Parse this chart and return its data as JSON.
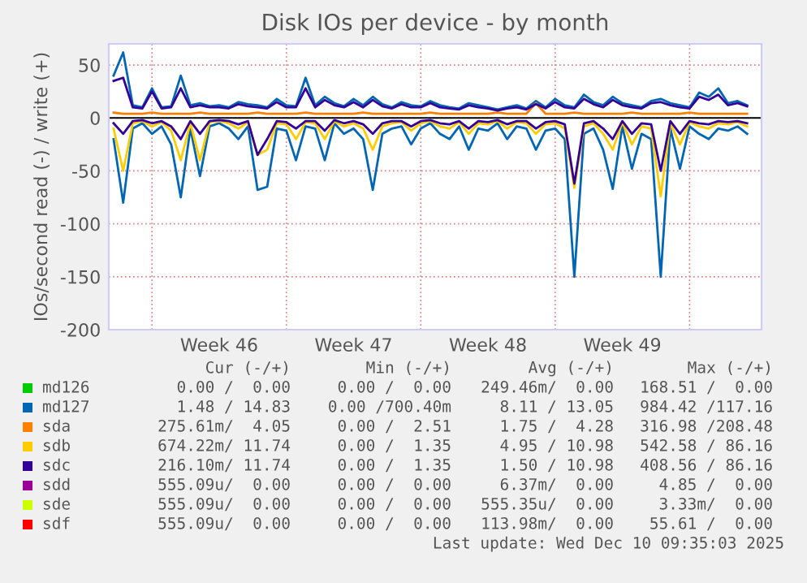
{
  "chart_data": {
    "type": "line",
    "title": "Disk IOs per device - by month",
    "ylabel": "IOs/second read (-) / write (+)",
    "categories": [
      null,
      null,
      null,
      null,
      null,
      null,
      null,
      null,
      null,
      null,
      null,
      "Week 46",
      null,
      null,
      null,
      null,
      null,
      null,
      null,
      null,
      null,
      null,
      null,
      null,
      null,
      "Week 47",
      null,
      null,
      null,
      null,
      null,
      null,
      null,
      null,
      null,
      null,
      null,
      null,
      null,
      "Week 48",
      null,
      null,
      null,
      null,
      null,
      null,
      null,
      null,
      null,
      null,
      null,
      null,
      null,
      "Week 49",
      null,
      null,
      null,
      null,
      null,
      null,
      null,
      null,
      null,
      null,
      null,
      null,
      null
    ],
    "ylim": [
      -200,
      70
    ],
    "yticks": [
      -200,
      -150,
      -100,
      -50,
      0,
      50
    ],
    "grid": true,
    "series": [
      {
        "name": "md126",
        "color": "#00cc00",
        "values": [
          null,
          null,
          null,
          null,
          null,
          null,
          null,
          null,
          null,
          null,
          null,
          null,
          null,
          null,
          null,
          null,
          null,
          null,
          null,
          null,
          null,
          null,
          null,
          null,
          null,
          null,
          null,
          null,
          null,
          null,
          null,
          null,
          null,
          null,
          null,
          null,
          null,
          null,
          null,
          null,
          null,
          null,
          null,
          null,
          null,
          null,
          null,
          null,
          null,
          null,
          null,
          null,
          null,
          null,
          null,
          null,
          null,
          null,
          null,
          null,
          null,
          null,
          null,
          null,
          null,
          null,
          null
        ]
      },
      {
        "name": "md127",
        "color": "#0066b3",
        "values": [
          40,
          62,
          12,
          10,
          28,
          10,
          11,
          40,
          12,
          14,
          11,
          12,
          10,
          15,
          13,
          12,
          10,
          18,
          12,
          11,
          38,
          12,
          20,
          14,
          11,
          18,
          12,
          20,
          13,
          10,
          15,
          12,
          11,
          16,
          12,
          10,
          9,
          14,
          12,
          10,
          8,
          10,
          12,
          9,
          16,
          10,
          18,
          12,
          10,
          22,
          15,
          12,
          20,
          14,
          12,
          10,
          16,
          18,
          14,
          12,
          10,
          24,
          20,
          28,
          14,
          16,
          12
        ]
      },
      {
        "name": "sda",
        "color": "#ff8000",
        "values": [
          5,
          4,
          4,
          4,
          5,
          4,
          4,
          4,
          4,
          5,
          4,
          4,
          4,
          4,
          4,
          5,
          4,
          4,
          4,
          4,
          5,
          4,
          4,
          4,
          4,
          4,
          5,
          4,
          4,
          4,
          4,
          4,
          4,
          5,
          4,
          4,
          4,
          4,
          4,
          4,
          5,
          4,
          4,
          4,
          14,
          4,
          4,
          4,
          5,
          4,
          4,
          4,
          4,
          4,
          5,
          4,
          4,
          4,
          4,
          4,
          5,
          4,
          4,
          4,
          4,
          4,
          4
        ]
      },
      {
        "name": "sdb",
        "color": "#ffcc00",
        "values": [
          null,
          null,
          null,
          null,
          null,
          null,
          null,
          null,
          null,
          null,
          null,
          null,
          null,
          null,
          null,
          null,
          null,
          null,
          null,
          null,
          null,
          null,
          null,
          null,
          null,
          null,
          null,
          null,
          null,
          null,
          null,
          null,
          null,
          null,
          null,
          null,
          null,
          null,
          null,
          null,
          null,
          null,
          null,
          null,
          null,
          null,
          null,
          null,
          null,
          null,
          null,
          null,
          null,
          null,
          null,
          null,
          null,
          null,
          null,
          null,
          null,
          null,
          null,
          null,
          null,
          null,
          null
        ]
      },
      {
        "name": "sdc",
        "color": "#330099",
        "values": [
          35,
          38,
          10,
          9,
          25,
          9,
          10,
          28,
          10,
          12,
          10,
          10,
          9,
          13,
          11,
          10,
          9,
          15,
          10,
          10,
          28,
          10,
          17,
          12,
          10,
          15,
          10,
          17,
          11,
          9,
          13,
          10,
          10,
          14,
          10,
          9,
          8,
          12,
          10,
          9,
          7,
          9,
          10,
          8,
          13,
          9,
          15,
          10,
          9,
          18,
          13,
          10,
          17,
          12,
          10,
          9,
          14,
          15,
          12,
          10,
          9,
          20,
          17,
          22,
          12,
          14,
          11
        ]
      },
      {
        "name": "sdd",
        "color": "#990099",
        "values": [
          null,
          null,
          null,
          null,
          null,
          null,
          null,
          null,
          null,
          null,
          null,
          null,
          null,
          null,
          null,
          null,
          null,
          null,
          null,
          null,
          null,
          null,
          null,
          null,
          null,
          null,
          null,
          null,
          null,
          null,
          null,
          null,
          null,
          null,
          null,
          null,
          null,
          null,
          null,
          null,
          null,
          null,
          null,
          null,
          null,
          null,
          null,
          null,
          null,
          null,
          null,
          null,
          null,
          null,
          null,
          null,
          null,
          null,
          null,
          null,
          null,
          null,
          null,
          null,
          null,
          null,
          null
        ]
      },
      {
        "name": "sde",
        "color": "#ccff00",
        "values": [
          null,
          null,
          null,
          null,
          null,
          null,
          null,
          null,
          null,
          null,
          null,
          null,
          null,
          null,
          null,
          null,
          null,
          null,
          null,
          null,
          null,
          null,
          null,
          null,
          null,
          null,
          null,
          null,
          null,
          null,
          null,
          null,
          null,
          null,
          null,
          null,
          null,
          null,
          null,
          null,
          null,
          null,
          null,
          null,
          null,
          null,
          null,
          null,
          null,
          null,
          null,
          null,
          null,
          null,
          null,
          null,
          null,
          null,
          null,
          null,
          null,
          null,
          null,
          null,
          null,
          null,
          null
        ]
      },
      {
        "name": "sdf",
        "color": "#ff0000",
        "values": [
          null,
          null,
          null,
          null,
          null,
          null,
          null,
          null,
          null,
          null,
          null,
          null,
          null,
          null,
          null,
          null,
          null,
          null,
          null,
          null,
          null,
          null,
          null,
          null,
          null,
          null,
          null,
          null,
          null,
          null,
          null,
          null,
          null,
          null,
          null,
          null,
          null,
          null,
          null,
          null,
          null,
          null,
          null,
          null,
          null,
          null,
          null,
          null,
          null,
          null,
          null,
          null,
          null,
          null,
          null,
          null,
          null,
          null,
          null,
          null,
          null,
          null,
          null,
          null,
          null,
          null,
          null
        ]
      },
      {
        "color": "#0066b3",
        "values": [
          -20,
          -80,
          -10,
          -5,
          -15,
          -8,
          -25,
          -75,
          -10,
          -55,
          -8,
          -5,
          -10,
          -20,
          -8,
          -68,
          -65,
          -10,
          -12,
          -40,
          -8,
          -10,
          -40,
          -5,
          -15,
          -10,
          -20,
          -68,
          -15,
          -10,
          -8,
          -25,
          -10,
          -5,
          -15,
          -20,
          -8,
          -30,
          -10,
          -12,
          -5,
          -20,
          -8,
          -10,
          -30,
          -12,
          -10,
          -20,
          -150,
          -15,
          -10,
          -30,
          -67,
          -8,
          -48,
          -15,
          -20,
          -150,
          -10,
          -48,
          -8,
          -15,
          -20,
          -10,
          -12,
          -8,
          -15
        ]
      },
      {
        "color": "#ffcc00",
        "values": [
          -10,
          -50,
          -5,
          -3,
          -8,
          -4,
          -12,
          -40,
          -5,
          -40,
          -4,
          -3,
          -5,
          -10,
          -4,
          -35,
          -30,
          -5,
          -6,
          -20,
          -4,
          -5,
          -20,
          -3,
          -8,
          -5,
          -10,
          -30,
          -8,
          -5,
          -4,
          -12,
          -5,
          -3,
          -8,
          -10,
          -4,
          -15,
          -5,
          -6,
          -3,
          -10,
          -4,
          -5,
          -15,
          -6,
          -5,
          -10,
          -66,
          -8,
          -5,
          -15,
          -30,
          -4,
          -25,
          -8,
          -10,
          -74,
          -5,
          -25,
          -4,
          -8,
          -10,
          -5,
          -6,
          -4,
          -8
        ]
      },
      {
        "color": "#330099",
        "values": [
          -5,
          -15,
          -3,
          -2,
          -5,
          -3,
          -8,
          -20,
          -3,
          -15,
          -3,
          -2,
          -3,
          -6,
          -3,
          -35,
          -20,
          -3,
          -4,
          -10,
          -3,
          -3,
          -12,
          -2,
          -5,
          -3,
          -6,
          -15,
          -5,
          -3,
          -3,
          -8,
          -3,
          -2,
          -5,
          -6,
          -3,
          -10,
          -3,
          -4,
          -2,
          -6,
          -3,
          -3,
          -10,
          -4,
          -3,
          -6,
          -62,
          -5,
          -3,
          -10,
          -20,
          -3,
          -15,
          -5,
          -6,
          -50,
          -3,
          -15,
          -3,
          -5,
          -6,
          -3,
          -4,
          -3,
          -5
        ]
      }
    ],
    "legend": "bottom",
    "annotations": [
      "Cur (-/+)",
      "Min (-/+)",
      "Avg (-/+)",
      "Max (-/+)",
      "0.00 /  0.00",
      "0.00 /  0.00",
      "249.46m/  0.00",
      "168.51 /  0.00",
      "1.48 / 14.83",
      "0.00 /700.40m",
      "8.11 / 13.05",
      "984.42 /117.16",
      "275.61m/  4.05",
      "0.00 /  2.51",
      "1.75 /  4.28",
      "316.98 /208.48",
      "674.22m/ 11.74",
      "0.00 /  1.35",
      "4.95 / 10.98",
      "542.58 / 86.16",
      "216.10m/ 11.74",
      "0.00 /  1.35",
      "1.50 / 10.98",
      "408.56 / 86.16",
      "555.09u/  0.00",
      "0.00 /  0.00",
      "6.37m/  0.00",
      "4.85 /  0.00",
      "555.09u/  0.00",
      "0.00 /  0.00",
      "555.35u/  0.00",
      "3.33m/  0.00",
      "555.09u/  0.00",
      "0.00 /  0.00",
      "113.98m/  0.00",
      "55.61 /  0.00",
      "Last update: Wed Dec 10 09:35:03 2025"
    ]
  }
}
